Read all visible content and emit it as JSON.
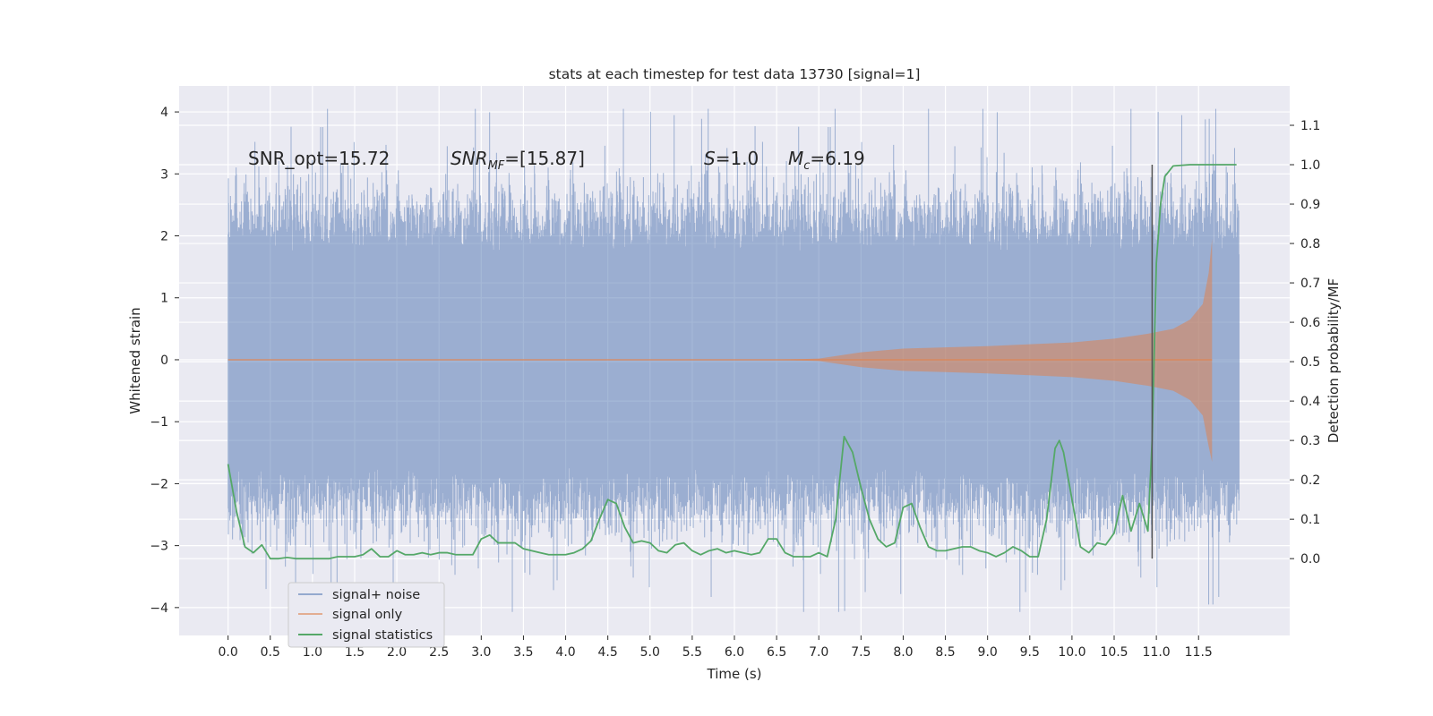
{
  "chart_data": {
    "type": "line",
    "title": "stats at each timestep for test data 13730 [signal=1]",
    "xlabel": "Time (s)",
    "ylabel_left": "Whitened strain",
    "ylabel_right": "Detection probability/MF",
    "xlim": [
      -0.58,
      12.58
    ],
    "ylim_left": [
      -4.45,
      4.42
    ],
    "ylim_right": [
      -0.195,
      1.2
    ],
    "x_ticks": [
      "0.0",
      "0.5",
      "1.0",
      "1.5",
      "2.0",
      "2.5",
      "3.0",
      "3.5",
      "4.0",
      "4.5",
      "5.0",
      "5.5",
      "6.0",
      "6.5",
      "7.0",
      "7.5",
      "8.0",
      "8.5",
      "9.0",
      "9.5",
      "10.0",
      "10.5",
      "11.0",
      "11.5"
    ],
    "y_ticks_left": [
      "4",
      "3",
      "2",
      "1",
      "0",
      "−1",
      "−2",
      "−3",
      "−4"
    ],
    "y_ticks_right": [
      "1.1",
      "1.0",
      "0.9",
      "0.8",
      "0.7",
      "0.6",
      "0.5",
      "0.4",
      "0.3",
      "0.2",
      "0.1",
      "0.0"
    ],
    "grid": true,
    "legend_position": "lower-left",
    "colors": {
      "background": "#eaeaf2",
      "grid": "#ffffff",
      "noise": "#4c72b0",
      "signal": "#dd8452",
      "statistics": "#55a868",
      "marker": "#555555"
    },
    "annotations": {
      "snr_opt": "SNR_opt=15.72",
      "snr_mf_main": "SNR",
      "snr_mf_sub": "MF",
      "snr_mf_value": "=[15.87]",
      "s_symbol": "S",
      "s_value": "=1.0",
      "mc_symbol": "M",
      "mc_sub": "c",
      "mc_value": "=6.19"
    },
    "detection_time_marker": 10.95,
    "series": [
      {
        "name": "signal+ noise",
        "description": "whitened noisy strain, roughly uniform amplitude",
        "x_range": [
          0.0,
          11.98
        ],
        "envelope_typical": [
          -2.0,
          2.0
        ],
        "extremes": {
          "max": 4.05,
          "min": -4.07
        }
      },
      {
        "name": "signal only",
        "description": "chirp envelope growing toward merger",
        "envelope_x": [
          0.0,
          6.5,
          7.0,
          7.5,
          8.0,
          8.5,
          9.0,
          9.5,
          10.0,
          10.5,
          10.9,
          11.2,
          11.4,
          11.55,
          11.62,
          11.66
        ],
        "envelope_amp": [
          0.0,
          0.0,
          0.02,
          0.12,
          0.18,
          0.2,
          0.22,
          0.25,
          0.28,
          0.34,
          0.42,
          0.5,
          0.65,
          0.9,
          1.4,
          1.95
        ],
        "min_tail": -1.65
      },
      {
        "name": "signal statistics",
        "description": "detection probability on right axis",
        "x": [
          0.0,
          0.1,
          0.2,
          0.3,
          0.4,
          0.5,
          0.6,
          0.7,
          0.8,
          0.9,
          1.0,
          1.1,
          1.2,
          1.3,
          1.4,
          1.5,
          1.6,
          1.7,
          1.8,
          1.9,
          2.0,
          2.1,
          2.2,
          2.3,
          2.4,
          2.5,
          2.6,
          2.7,
          2.8,
          2.9,
          3.0,
          3.1,
          3.2,
          3.3,
          3.4,
          3.5,
          3.6,
          3.7,
          3.8,
          3.9,
          4.0,
          4.1,
          4.2,
          4.3,
          4.4,
          4.5,
          4.6,
          4.7,
          4.8,
          4.9,
          5.0,
          5.1,
          5.2,
          5.3,
          5.4,
          5.5,
          5.6,
          5.7,
          5.8,
          5.9,
          6.0,
          6.1,
          6.2,
          6.3,
          6.4,
          6.5,
          6.6,
          6.7,
          6.8,
          6.9,
          7.0,
          7.1,
          7.2,
          7.3,
          7.4,
          7.5,
          7.6,
          7.7,
          7.8,
          7.9,
          8.0,
          8.1,
          8.2,
          8.3,
          8.4,
          8.5,
          8.6,
          8.7,
          8.8,
          8.9,
          9.0,
          9.1,
          9.2,
          9.3,
          9.4,
          9.5,
          9.6,
          9.7,
          9.8,
          9.85,
          9.9,
          10.0,
          10.1,
          10.2,
          10.3,
          10.4,
          10.5,
          10.6,
          10.7,
          10.8,
          10.9,
          10.95,
          11.0,
          11.05,
          11.1,
          11.2,
          11.4,
          11.6,
          11.8,
          11.95
        ],
        "values": [
          0.24,
          0.12,
          0.03,
          0.015,
          0.035,
          0.0,
          0.0,
          0.003,
          0.0,
          0.0,
          0.0,
          0.0,
          0.0,
          0.005,
          0.005,
          0.005,
          0.01,
          0.025,
          0.005,
          0.005,
          0.02,
          0.01,
          0.01,
          0.015,
          0.01,
          0.015,
          0.015,
          0.01,
          0.01,
          0.01,
          0.05,
          0.06,
          0.04,
          0.04,
          0.04,
          0.025,
          0.02,
          0.015,
          0.01,
          0.01,
          0.01,
          0.015,
          0.025,
          0.045,
          0.1,
          0.15,
          0.14,
          0.08,
          0.04,
          0.045,
          0.04,
          0.02,
          0.015,
          0.035,
          0.04,
          0.02,
          0.01,
          0.02,
          0.025,
          0.015,
          0.02,
          0.015,
          0.01,
          0.015,
          0.05,
          0.05,
          0.015,
          0.005,
          0.005,
          0.005,
          0.015,
          0.005,
          0.1,
          0.31,
          0.27,
          0.18,
          0.1,
          0.05,
          0.03,
          0.04,
          0.13,
          0.14,
          0.08,
          0.03,
          0.02,
          0.02,
          0.025,
          0.03,
          0.03,
          0.02,
          0.015,
          0.005,
          0.015,
          0.03,
          0.02,
          0.005,
          0.005,
          0.1,
          0.28,
          0.3,
          0.27,
          0.15,
          0.03,
          0.015,
          0.04,
          0.035,
          0.065,
          0.16,
          0.07,
          0.14,
          0.07,
          0.3,
          0.75,
          0.9,
          0.97,
          0.997,
          1.0,
          1.0,
          1.0,
          1.0
        ]
      }
    ]
  }
}
